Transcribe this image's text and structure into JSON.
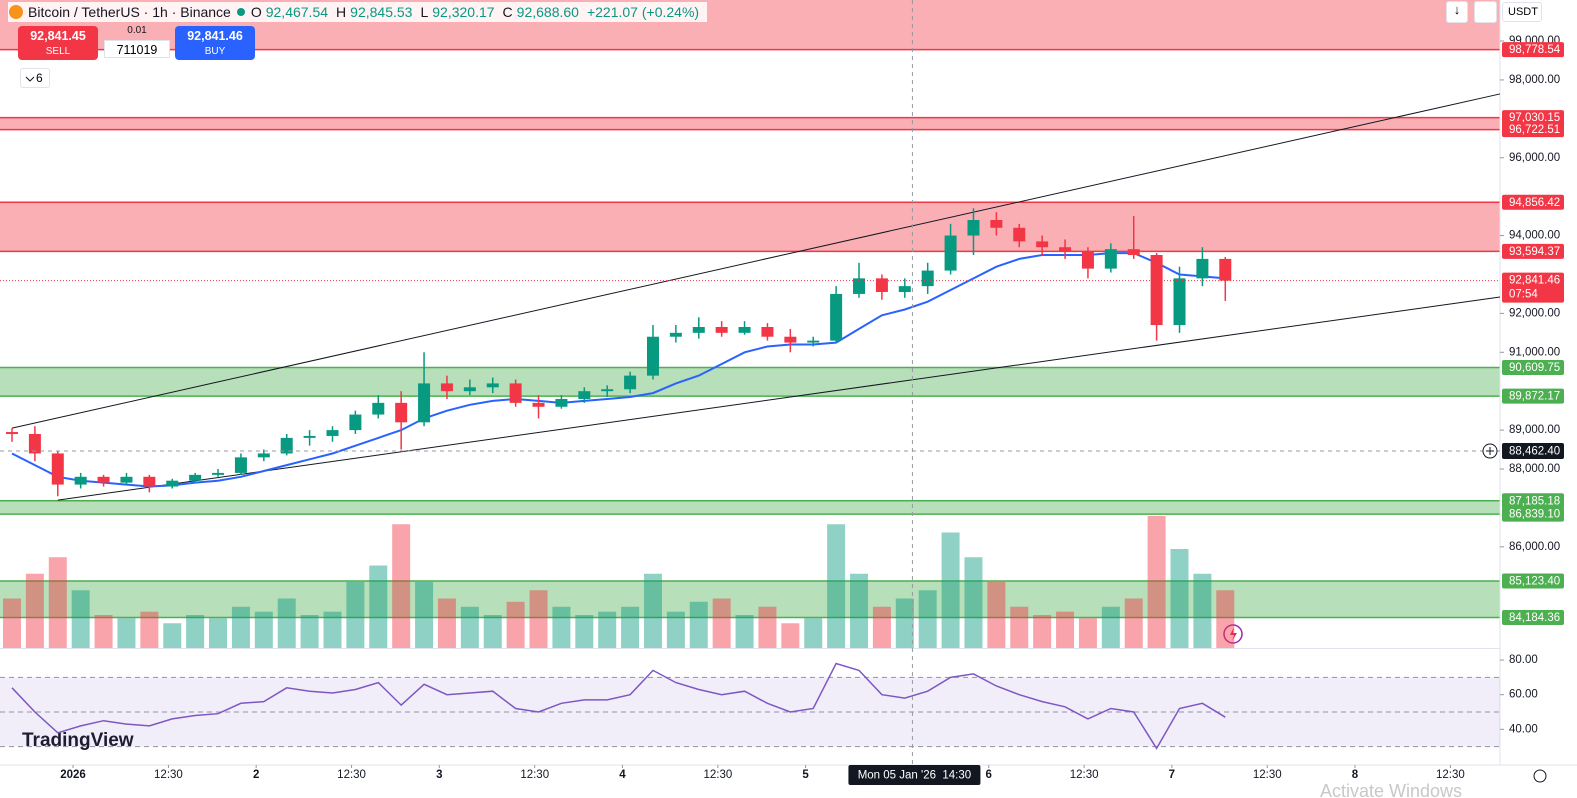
{
  "header": {
    "symbol": "Bitcoin / TetherUS · 1h · Binance",
    "o_label": "O",
    "open": "92,467.54",
    "h_label": "H",
    "high": "92,845.53",
    "l_label": "L",
    "low": "92,320.17",
    "c_label": "C",
    "close": "92,688.60",
    "change": "+221.07 (+0.24%)"
  },
  "trade": {
    "sell_price": "92,841.45",
    "sell": "SELL",
    "step": "0.01",
    "quantity": "711019",
    "buy_price": "92,841.46",
    "buy": "BUY"
  },
  "indicators_count": "6",
  "currency": "USDT",
  "logo": "TradingView",
  "watermark": "Activate Windows",
  "chart_data": {
    "type": "candlestick",
    "x": [
      0,
      3,
      6,
      9,
      12,
      15,
      18,
      21,
      24,
      27,
      30,
      33,
      36,
      39,
      42,
      45,
      48,
      51,
      54,
      57,
      60,
      63,
      66,
      69,
      72,
      75,
      78,
      81,
      84,
      87,
      90,
      93,
      96,
      99,
      102,
      105,
      108,
      111,
      114,
      117,
      120,
      123,
      126,
      129,
      132,
      135,
      138,
      141,
      144,
      147,
      150,
      153,
      156,
      159
    ],
    "open": [
      88950,
      88900,
      88400,
      87600,
      87800,
      87650,
      87800,
      87550,
      87700,
      87850,
      87900,
      88300,
      88400,
      88800,
      88850,
      89000,
      89400,
      89700,
      89200,
      90200,
      90000,
      90100,
      90200,
      89700,
      89600,
      89800,
      90000,
      90050,
      90400,
      91400,
      91500,
      91650,
      91500,
      91650,
      91400,
      91250,
      91300,
      92500,
      92900,
      92550,
      92700,
      93100,
      94000,
      94400,
      94200,
      93850,
      93700,
      93600,
      93150,
      93650,
      93500,
      91700,
      92900,
      93400
    ],
    "high": [
      89050,
      89100,
      88450,
      87900,
      87850,
      87900,
      87850,
      87750,
      87900,
      88000,
      88400,
      88500,
      88900,
      89000,
      89100,
      89500,
      89900,
      90000,
      91000,
      90400,
      90300,
      90350,
      90300,
      89900,
      89900,
      90100,
      90150,
      90500,
      91700,
      91700,
      91900,
      91800,
      91800,
      91750,
      91600,
      91400,
      92700,
      93300,
      93000,
      92900,
      93300,
      94300,
      94700,
      94600,
      94300,
      94000,
      93900,
      93700,
      93800,
      94500,
      93550,
      93200,
      93700,
      93450
    ],
    "low": [
      88700,
      88200,
      87300,
      87500,
      87550,
      87600,
      87400,
      87500,
      87650,
      87800,
      87850,
      88200,
      88350,
      88600,
      88700,
      88900,
      89300,
      88500,
      89100,
      89800,
      89900,
      89950,
      89600,
      89300,
      89550,
      89700,
      89850,
      89950,
      90300,
      91250,
      91350,
      91400,
      91450,
      91300,
      91000,
      91150,
      91250,
      92400,
      92350,
      92400,
      92500,
      93000,
      93500,
      94000,
      93700,
      93500,
      93400,
      92900,
      93050,
      93400,
      91300,
      91500,
      92700,
      92320
    ],
    "close": [
      88900,
      88400,
      87600,
      87800,
      87650,
      87800,
      87550,
      87700,
      87850,
      87900,
      88300,
      88400,
      88800,
      88850,
      89000,
      89400,
      89700,
      89200,
      90200,
      90000,
      90100,
      90200,
      89700,
      89600,
      89800,
      90000,
      90050,
      90400,
      91400,
      91500,
      91650,
      91500,
      91650,
      91400,
      91250,
      91300,
      92500,
      92900,
      92550,
      92700,
      93100,
      94000,
      94400,
      94200,
      93850,
      93700,
      93600,
      93150,
      93650,
      93500,
      91700,
      92900,
      93400,
      92841.46
    ],
    "up_color": "#089981",
    "down_color": "#f23645",
    "xlim": [
      0,
      195
    ],
    "xticks": [
      {
        "value": 8,
        "label": "2026"
      },
      {
        "value": 20.5,
        "label": "12:30"
      },
      {
        "value": 32,
        "label": "2"
      },
      {
        "value": 44.5,
        "label": "12:30"
      },
      {
        "value": 56,
        "label": "3"
      },
      {
        "value": 68.5,
        "label": "12:30"
      },
      {
        "value": 80,
        "label": "4"
      },
      {
        "value": 92.5,
        "label": "12:30"
      },
      {
        "value": 104,
        "label": "5"
      },
      {
        "value": 128,
        "label": "6"
      },
      {
        "value": 140.5,
        "label": "12:30"
      },
      {
        "value": 152,
        "label": "7"
      },
      {
        "value": 164.5,
        "label": "12:30"
      },
      {
        "value": 176,
        "label": "8"
      },
      {
        "value": 188.5,
        "label": "12:30"
      }
    ],
    "ylim": [
      83400,
      100054
    ],
    "yticks": [
      {
        "value": 99000,
        "label": "99,000.00"
      },
      {
        "value": 98000,
        "label": "98,000.00"
      },
      {
        "value": 96000,
        "label": "96,000.00"
      },
      {
        "value": 94000,
        "label": "94,000.00"
      },
      {
        "value": 92000,
        "label": "92,000.00"
      },
      {
        "value": 91000,
        "label": "91,000.00"
      },
      {
        "value": 89000,
        "label": "89,000.00"
      },
      {
        "value": 88000,
        "label": "88,000.00"
      },
      {
        "value": 86000,
        "label": "86,000.00"
      }
    ],
    "ma": {
      "color": "#2962ff",
      "values": [
        88400,
        88100,
        87800,
        87700,
        87650,
        87600,
        87550,
        87580,
        87650,
        87700,
        87800,
        87950,
        88100,
        88250,
        88400,
        88600,
        88800,
        89000,
        89300,
        89500,
        89650,
        89750,
        89800,
        89750,
        89700,
        89750,
        89800,
        89850,
        89950,
        90200,
        90400,
        90700,
        91000,
        91150,
        91200,
        91200,
        91250,
        91600,
        91950,
        92100,
        92300,
        92600,
        92900,
        93200,
        93400,
        93500,
        93500,
        93500,
        93550,
        93550,
        93300,
        93000,
        92950,
        92900
      ]
    },
    "volume": {
      "vlim": [
        0,
        100
      ],
      "values": [
        30,
        45,
        55,
        35,
        20,
        18,
        22,
        15,
        20,
        18,
        25,
        22,
        30,
        20,
        22,
        40,
        50,
        75,
        40,
        30,
        25,
        20,
        28,
        35,
        25,
        20,
        22,
        25,
        45,
        22,
        28,
        30,
        20,
        25,
        15,
        18,
        75,
        45,
        25,
        30,
        35,
        70,
        55,
        40,
        25,
        20,
        22,
        18,
        25,
        30,
        80,
        60,
        45,
        35
      ]
    },
    "rsi": {
      "color": "#7e57c2",
      "ylim": [
        19.4,
        85.8
      ],
      "levels": [
        70,
        50,
        30
      ],
      "yticks": [
        {
          "value": 80,
          "label": "80.00"
        },
        {
          "value": 60,
          "label": "60.00"
        },
        {
          "value": 40,
          "label": "40.00"
        }
      ],
      "values": [
        64,
        50,
        38,
        42,
        45,
        43,
        42,
        46,
        48,
        49,
        55,
        56,
        64,
        62,
        61,
        63,
        67,
        54,
        66,
        60,
        61,
        62,
        52,
        50,
        55,
        57,
        57,
        60,
        74,
        67,
        63,
        60,
        62,
        55,
        50,
        52,
        78,
        74,
        60,
        58,
        62,
        70,
        72,
        65,
        60,
        56,
        53,
        46,
        52,
        50,
        29,
        52,
        55,
        47
      ]
    },
    "zones": [
      {
        "color": "#f23645",
        "low": {
          "value": 98778.54,
          "label": "98,778.54"
        },
        "high": null
      },
      {
        "color": "#f23645",
        "low": {
          "value": 96722.51,
          "label": "96,722.51"
        },
        "high": {
          "value": 97030.15,
          "label": "97,030.15"
        }
      },
      {
        "color": "#f23645",
        "low": {
          "value": 93594.37,
          "label": "93,594.37"
        },
        "high": {
          "value": 94856.42,
          "label": "94,856.42"
        }
      },
      {
        "color": "#4caf50",
        "low": {
          "value": 89872.17,
          "label": "89,872.17"
        },
        "high": {
          "value": 90609.75,
          "label": "90,609.75"
        }
      },
      {
        "color": "#4caf50",
        "low": {
          "value": 86839.1,
          "label": "86,839.10"
        },
        "high": {
          "value": 87185.18,
          "label": "87,185.18"
        }
      },
      {
        "color": "#4caf50",
        "low": {
          "value": 84184.36,
          "label": "84,184.36"
        },
        "high": {
          "value": 85123.4,
          "label": "85,123.40"
        }
      }
    ],
    "trendlines": [
      [
        [
          0,
          89050
        ],
        [
          195,
          97640
        ]
      ],
      [
        [
          6,
          87200
        ],
        [
          195,
          92420
        ]
      ]
    ],
    "last_price": {
      "value": 92841.46,
      "label": "92,841.46",
      "countdown": "07:54"
    },
    "crosshair": {
      "time": {
        "value": 118,
        "label": "Mon 05 Jan '26  14:30"
      },
      "price": {
        "value": 88462.4,
        "label": "88,462.40"
      }
    }
  }
}
